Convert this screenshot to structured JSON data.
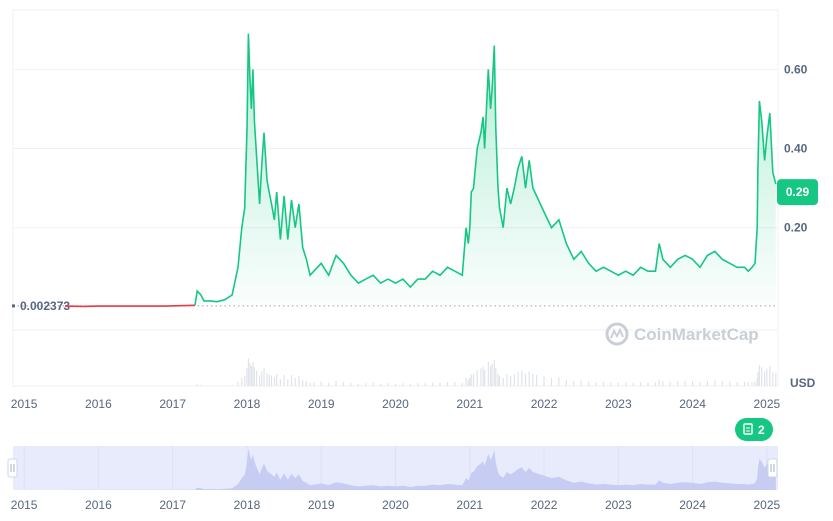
{
  "chart_data": {
    "type": "area",
    "xlabel": "",
    "ylabel": "",
    "y_unit": "USD",
    "y_ticks": [
      {
        "value": 0.6,
        "label": "0.60"
      },
      {
        "value": 0.4,
        "label": "0.40"
      },
      {
        "value": 0.2,
        "label": "0.20"
      }
    ],
    "ylim": [
      -0.2,
      0.75
    ],
    "xlim": [
      2014.85,
      2025.15
    ],
    "x_ticks": [
      "2015",
      "2016",
      "2017",
      "2018",
      "2019",
      "2020",
      "2021",
      "2022",
      "2023",
      "2024",
      "2025"
    ],
    "baseline": {
      "value": 0.002373,
      "label": "0.002373"
    },
    "current_price": {
      "value": 0.29,
      "label": "0.29"
    },
    "news_badge": {
      "label": "2"
    },
    "watermark": "CoinMarketCap",
    "grid": true,
    "colors": {
      "up": "#16c784",
      "down": "#ea3943",
      "fill": "#16c784",
      "navigator": "#e8ebfb"
    },
    "series": [
      {
        "x": [
          2015.55,
          2015.8,
          2016.0,
          2016.3,
          2016.6,
          2016.9,
          2017.1,
          2017.3,
          2017.33,
          2017.38,
          2017.42,
          2017.5,
          2017.6,
          2017.7,
          2017.8,
          2017.88,
          2017.93,
          2017.97,
          2018.0,
          2018.02,
          2018.04,
          2018.06,
          2018.08,
          2018.1,
          2018.13,
          2018.17,
          2018.2,
          2018.23,
          2018.27,
          2018.3,
          2018.33,
          2018.37,
          2018.4,
          2018.45,
          2018.5,
          2018.55,
          2018.6,
          2018.65,
          2018.7,
          2018.75,
          2018.8,
          2018.85,
          2018.9,
          2019.0,
          2019.1,
          2019.2,
          2019.3,
          2019.4,
          2019.5,
          2019.6,
          2019.7,
          2019.8,
          2019.9,
          2020.0,
          2020.1,
          2020.2,
          2020.3,
          2020.4,
          2020.5,
          2020.6,
          2020.7,
          2020.8,
          2020.9,
          2020.95,
          2020.98,
          2021.0,
          2021.02,
          2021.05,
          2021.1,
          2021.15,
          2021.18,
          2021.2,
          2021.25,
          2021.28,
          2021.3,
          2021.33,
          2021.35,
          2021.38,
          2021.4,
          2021.45,
          2021.5,
          2021.55,
          2021.6,
          2021.65,
          2021.7,
          2021.75,
          2021.8,
          2021.85,
          2021.9,
          2022.0,
          2022.1,
          2022.2,
          2022.3,
          2022.4,
          2022.5,
          2022.6,
          2022.7,
          2022.8,
          2022.9,
          2023.0,
          2023.1,
          2023.2,
          2023.3,
          2023.4,
          2023.5,
          2023.55,
          2023.6,
          2023.7,
          2023.8,
          2023.9,
          2024.0,
          2024.1,
          2024.2,
          2024.3,
          2024.4,
          2024.5,
          2024.6,
          2024.7,
          2024.75,
          2024.8,
          2024.84,
          2024.87,
          2024.88,
          2024.9,
          2024.93,
          2024.97,
          2025.0,
          2025.04,
          2025.08,
          2025.12
        ],
        "y": [
          0.002,
          0.001,
          0.002,
          0.002,
          0.002,
          0.002,
          0.003,
          0.004,
          0.04,
          0.03,
          0.015,
          0.015,
          0.013,
          0.018,
          0.03,
          0.1,
          0.2,
          0.25,
          0.45,
          0.69,
          0.58,
          0.5,
          0.6,
          0.47,
          0.38,
          0.26,
          0.36,
          0.44,
          0.32,
          0.29,
          0.26,
          0.22,
          0.29,
          0.17,
          0.28,
          0.17,
          0.27,
          0.2,
          0.26,
          0.15,
          0.12,
          0.08,
          0.09,
          0.11,
          0.08,
          0.13,
          0.11,
          0.08,
          0.06,
          0.07,
          0.08,
          0.06,
          0.07,
          0.06,
          0.07,
          0.05,
          0.07,
          0.07,
          0.09,
          0.08,
          0.1,
          0.09,
          0.08,
          0.2,
          0.16,
          0.2,
          0.29,
          0.3,
          0.4,
          0.44,
          0.48,
          0.4,
          0.6,
          0.5,
          0.55,
          0.66,
          0.45,
          0.3,
          0.25,
          0.2,
          0.3,
          0.26,
          0.3,
          0.35,
          0.38,
          0.3,
          0.37,
          0.3,
          0.28,
          0.24,
          0.2,
          0.22,
          0.16,
          0.12,
          0.14,
          0.11,
          0.09,
          0.1,
          0.09,
          0.08,
          0.09,
          0.08,
          0.1,
          0.09,
          0.09,
          0.16,
          0.12,
          0.1,
          0.12,
          0.13,
          0.12,
          0.1,
          0.13,
          0.14,
          0.12,
          0.11,
          0.1,
          0.1,
          0.09,
          0.1,
          0.11,
          0.2,
          0.35,
          0.52,
          0.47,
          0.37,
          0.43,
          0.49,
          0.34,
          0.31
        ]
      }
    ]
  }
}
